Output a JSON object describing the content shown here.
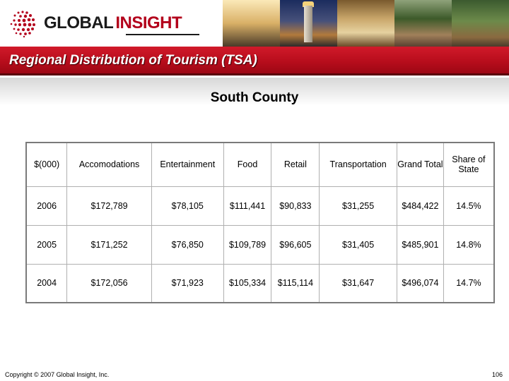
{
  "logo": {
    "global": "GLOBAL",
    "insight": "INSIGHT"
  },
  "title": "Regional Distribution of Tourism (TSA)",
  "subtitle": "South County",
  "table": {
    "headers": [
      "$(000)",
      "Accomodations",
      "Entertainment",
      "Food",
      "Retail",
      "Transportation",
      "Grand Total",
      "Share of State"
    ],
    "rows": [
      [
        "2006",
        "$172,789",
        "$78,105",
        "$111,441",
        "$90,833",
        "$31,255",
        "$484,422",
        "14.5%"
      ],
      [
        "2005",
        "$171,252",
        "$76,850",
        "$109,789",
        "$96,605",
        "$31,405",
        "$485,901",
        "14.8%"
      ],
      [
        "2004",
        "$172,056",
        "$71,923",
        "$105,334",
        "$115,114",
        "$31,647",
        "$496,074",
        "14.7%"
      ]
    ]
  },
  "footer": {
    "copyright": "Copyright © 2007 Global Insight, Inc.",
    "page_number": "106"
  },
  "colors": {
    "brand_red": "#b80d1c",
    "logo_red": "#b3001b"
  }
}
